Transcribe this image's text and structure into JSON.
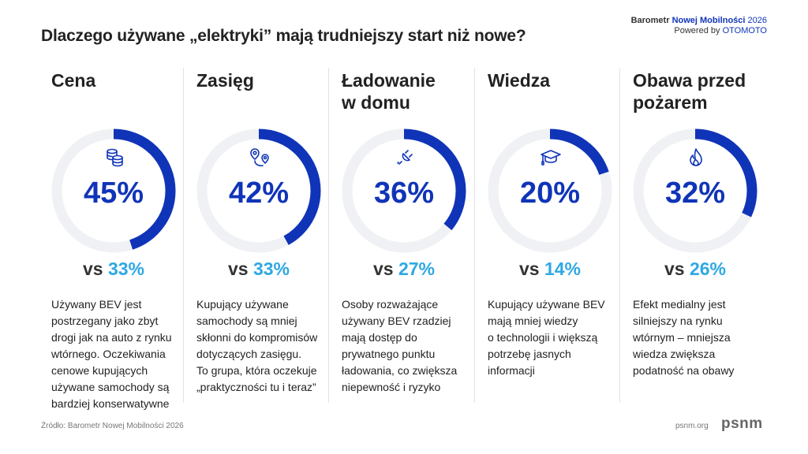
{
  "brand": {
    "line1_a": "Barometr ",
    "line1_b": "Nowej Mobilności",
    "line1_c": " 2026",
    "line2_a": "Powered by ",
    "line2_b": "OTOMOTO"
  },
  "title": "Dlaczego używane „elektryki” mają trudniejszy start niż nowe?",
  "colors": {
    "primary": "#1034b8",
    "secondary": "#2ea8e3",
    "track": "#f0f1f4"
  },
  "vs_label": "vs",
  "columns": [
    {
      "heading": [
        "Cena"
      ],
      "icon": "coins-icon",
      "value": 45,
      "value_label": "45%",
      "compare": "33%",
      "text": [
        "Używany BEV jest",
        "postrzegany jako zbyt",
        "drogi jak na auto z rynku",
        "wtórnego. Oczekiwania",
        "cenowe kupujących",
        "używane samochody są",
        "bardziej konserwatywne"
      ]
    },
    {
      "heading": [
        "Zasięg"
      ],
      "icon": "route-pins-icon",
      "value": 42,
      "value_label": "42%",
      "compare": "33%",
      "text": [
        "Kupujący używane",
        "samochody są mniej",
        "skłonni do kompromisów",
        "dotyczących zasięgu.",
        "To grupa, która oczekuje",
        "„praktyczności tu i teraz”"
      ]
    },
    {
      "heading": [
        "Ładowanie",
        "w domu"
      ],
      "icon": "plug-icon",
      "value": 36,
      "value_label": "36%",
      "compare": "27%",
      "text": [
        "Osoby rozważające",
        "używany BEV rzadziej",
        "mają dostęp do",
        "prywatnego punktu",
        "ładowania, co zwiększa",
        "niepewność i ryzyko"
      ]
    },
    {
      "heading": [
        "Wiedza"
      ],
      "icon": "graduation-cap-icon",
      "value": 20,
      "value_label": "20%",
      "compare": "14%",
      "text": [
        "Kupujący używane BEV",
        "mają mniej wiedzy",
        "o technologii i większą",
        "potrzebę jasnych",
        "informacji"
      ]
    },
    {
      "heading": [
        "Obawa przed",
        "pożarem"
      ],
      "icon": "flame-icon",
      "value": 32,
      "value_label": "32%",
      "compare": "26%",
      "text": [
        "Efekt medialny jest",
        "silniejszy na rynku",
        "wtórnym – mniejsza",
        "wiedza zwiększa",
        "podatność na obawy"
      ]
    }
  ],
  "footer": {
    "source": "Źródło: Barometr Nowej Mobilności 2026",
    "site": "psnm.org",
    "logo": "psnm"
  }
}
